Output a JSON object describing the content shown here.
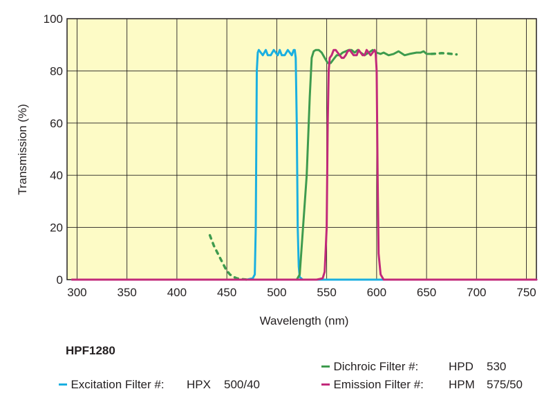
{
  "chart_data": {
    "type": "line",
    "title": "",
    "xlabel": "Wavelength (nm)",
    "ylabel": "Transmission (%)",
    "xlim": [
      290,
      760
    ],
    "ylim": [
      0,
      100
    ],
    "xticks": [
      "300",
      "350",
      "400",
      "450",
      "500",
      "550",
      "600",
      "650",
      "700",
      "750"
    ],
    "xtick_values": [
      300,
      350,
      400,
      450,
      500,
      550,
      600,
      650,
      700,
      750
    ],
    "yticks": [
      "0",
      "20",
      "40",
      "60",
      "80",
      "100"
    ],
    "ytick_values": [
      0,
      20,
      40,
      60,
      80,
      100
    ],
    "grid": true,
    "background": "#fdfbc6",
    "series": [
      {
        "name": "Excitation Filter",
        "color": "#1aafe0",
        "points": [
          [
            295,
            0
          ],
          [
            470,
            0
          ],
          [
            476,
            0.5
          ],
          [
            478,
            2
          ],
          [
            479,
            20
          ],
          [
            480,
            80
          ],
          [
            481,
            87
          ],
          [
            482,
            88
          ],
          [
            484,
            87
          ],
          [
            486,
            86
          ],
          [
            489,
            88
          ],
          [
            491,
            86
          ],
          [
            494,
            86
          ],
          [
            497,
            88
          ],
          [
            499,
            87
          ],
          [
            501,
            86
          ],
          [
            503,
            88
          ],
          [
            505,
            86
          ],
          [
            508,
            86
          ],
          [
            511,
            88
          ],
          [
            513,
            87
          ],
          [
            515,
            86
          ],
          [
            517,
            88
          ],
          [
            518,
            88
          ],
          [
            519,
            85
          ],
          [
            520,
            60
          ],
          [
            521,
            20
          ],
          [
            522,
            5
          ],
          [
            523,
            1
          ],
          [
            526,
            0
          ],
          [
            760,
            0
          ]
        ]
      },
      {
        "name": "Dichroic Filter",
        "color": "#3e9b4e",
        "points": [
          [
            520,
            0
          ],
          [
            523,
            2
          ],
          [
            530,
            40
          ],
          [
            533,
            70
          ],
          [
            535,
            85
          ],
          [
            537,
            87.5
          ],
          [
            539,
            88
          ],
          [
            542,
            88
          ],
          [
            545,
            87
          ],
          [
            548,
            85
          ],
          [
            551,
            83
          ],
          [
            554,
            83
          ],
          [
            557,
            84.5
          ],
          [
            560,
            86
          ],
          [
            563,
            86
          ],
          [
            566,
            87
          ],
          [
            569,
            87.5
          ],
          [
            572,
            88
          ],
          [
            575,
            88
          ],
          [
            578,
            87
          ],
          [
            581,
            88
          ],
          [
            584,
            87
          ],
          [
            588,
            86
          ],
          [
            592,
            87
          ],
          [
            596,
            88
          ],
          [
            600,
            87
          ],
          [
            604,
            86.5
          ],
          [
            607,
            87
          ],
          [
            612,
            86
          ],
          [
            617,
            86.5
          ],
          [
            622,
            87.5
          ],
          [
            628,
            86
          ],
          [
            633,
            86.5
          ],
          [
            640,
            87
          ],
          [
            644,
            87
          ],
          [
            647,
            87.5
          ],
          [
            650,
            86.5
          ],
          [
            655,
            86.5
          ]
        ],
        "dashed_segments": [
          [
            [
              433,
              17
            ],
            [
              437,
              13
            ],
            [
              441,
              10
            ],
            [
              445,
              7
            ],
            [
              449,
              4
            ],
            [
              453,
              2
            ],
            [
              457,
              1
            ],
            [
              460,
              0.5
            ],
            [
              465,
              0.2
            ],
            [
              470,
              0
            ]
          ],
          [
            [
              655,
              86.5
            ],
            [
              660,
              86.6
            ],
            [
              665,
              86.8
            ],
            [
              670,
              86.7
            ],
            [
              675,
              86.5
            ],
            [
              680,
              86.3
            ]
          ]
        ]
      },
      {
        "name": "Emission Filter",
        "color": "#c1297a",
        "points": [
          [
            295,
            0
          ],
          [
            540,
            0
          ],
          [
            546,
            0.5
          ],
          [
            548,
            3
          ],
          [
            550,
            20
          ],
          [
            551,
            60
          ],
          [
            552,
            80
          ],
          [
            553,
            85
          ],
          [
            555,
            86
          ],
          [
            557,
            88
          ],
          [
            559,
            88
          ],
          [
            561,
            87
          ],
          [
            563,
            86
          ],
          [
            565,
            85
          ],
          [
            567,
            85
          ],
          [
            569,
            86
          ],
          [
            571,
            87.5
          ],
          [
            573,
            88
          ],
          [
            575,
            87
          ],
          [
            577,
            86
          ],
          [
            580,
            86
          ],
          [
            582,
            88
          ],
          [
            584,
            87
          ],
          [
            586,
            86
          ],
          [
            588,
            86
          ],
          [
            590,
            88
          ],
          [
            592,
            87
          ],
          [
            594,
            86
          ],
          [
            596,
            87
          ],
          [
            598,
            88
          ],
          [
            599,
            87
          ],
          [
            600,
            80
          ],
          [
            601,
            40
          ],
          [
            602,
            10
          ],
          [
            604,
            2
          ],
          [
            607,
            0
          ],
          [
            760,
            0
          ]
        ]
      }
    ]
  },
  "legend": {
    "title": "HPF1280",
    "items": [
      {
        "label": "Excitation Filter #:",
        "code": "HPX",
        "value": "500/40",
        "color": "#1aafe0"
      },
      {
        "label": "Dichroic Filter #:",
        "code": "HPD",
        "value": "530",
        "color": "#3e9b4e"
      },
      {
        "label": "Emission Filter #:",
        "code": "HPM",
        "value": "575/50",
        "color": "#c1297a"
      }
    ]
  }
}
